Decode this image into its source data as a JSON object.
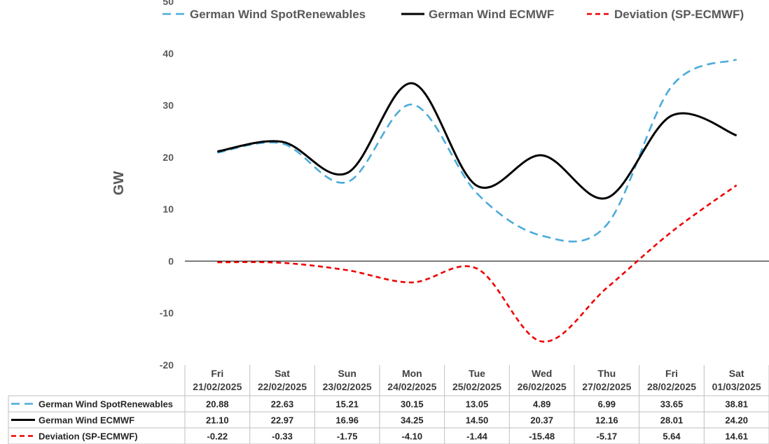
{
  "chart_data": {
    "type": "line",
    "ylabel": "GW",
    "xlabel": "",
    "ylim": [
      -20,
      50
    ],
    "yticks": [
      50,
      40,
      30,
      20,
      10,
      0,
      -10,
      -20
    ],
    "legend_position": "top",
    "categories": [
      {
        "day": "Fri",
        "date": "21/02/2025"
      },
      {
        "day": "Sat",
        "date": "22/02/2025"
      },
      {
        "day": "Sun",
        "date": "23/02/2025"
      },
      {
        "day": "Mon",
        "date": "24/02/2025"
      },
      {
        "day": "Tue",
        "date": "25/02/2025"
      },
      {
        "day": "Wed",
        "date": "26/02/2025"
      },
      {
        "day": "Thu",
        "date": "27/02/2025"
      },
      {
        "day": "Fri",
        "date": "28/02/2025"
      },
      {
        "day": "Sat",
        "date": "01/03/2025"
      }
    ],
    "series": [
      {
        "name": "German Wind SpotRenewables",
        "color": "#4bacd9",
        "style": "dashed",
        "values": [
          20.88,
          22.63,
          15.21,
          30.15,
          13.05,
          4.89,
          6.99,
          33.65,
          38.81
        ],
        "labels": [
          "20.88",
          "22.63",
          "15.21",
          "30.15",
          "13.05",
          "4.89",
          "6.99",
          "33.65",
          "38.81"
        ]
      },
      {
        "name": "German Wind ECMWF",
        "color": "#000000",
        "style": "solid",
        "values": [
          21.1,
          22.97,
          16.96,
          34.25,
          14.5,
          20.37,
          12.16,
          28.01,
          24.2
        ],
        "labels": [
          "21.10",
          "22.97",
          "16.96",
          "34.25",
          "14.50",
          "20.37",
          "12.16",
          "28.01",
          "24.20"
        ]
      },
      {
        "name": "Deviation (SP-ECMWF)",
        "color": "#ee0000",
        "style": "dashed",
        "values": [
          -0.22,
          -0.33,
          -1.75,
          -4.1,
          -1.44,
          -15.48,
          -5.17,
          5.64,
          14.61
        ],
        "labels": [
          "-0.22",
          "-0.33",
          "-1.75",
          "-4.10",
          "-1.44",
          "-15.48",
          "-5.17",
          "5.64",
          "14.61"
        ]
      }
    ]
  }
}
